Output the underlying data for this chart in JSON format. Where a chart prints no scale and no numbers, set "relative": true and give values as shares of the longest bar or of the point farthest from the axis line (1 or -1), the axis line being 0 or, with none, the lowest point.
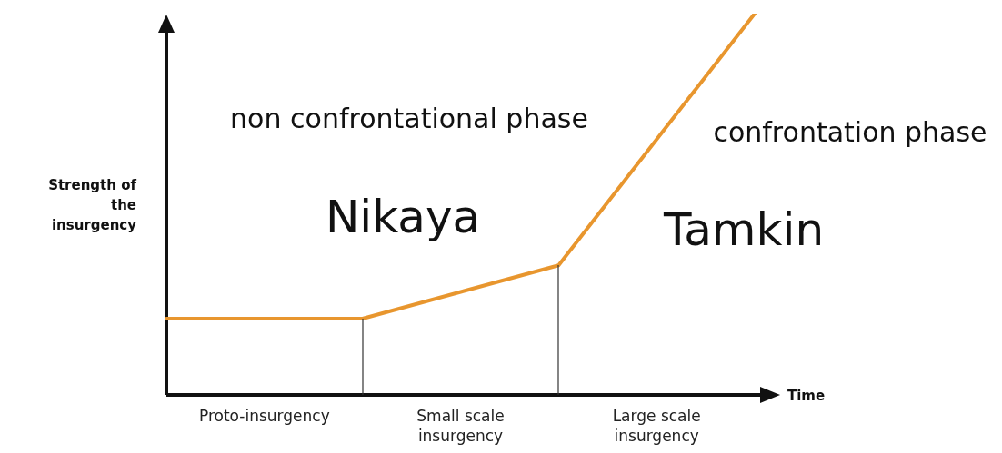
{
  "chart_data": {
    "type": "line",
    "relative": true,
    "xlabel": "Time",
    "ylabel": "Strength of the insurgency",
    "categories": [
      null,
      null,
      null,
      null
    ],
    "series": [
      {
        "color": "#e8962e",
        "values": [
          0.2,
          0.2,
          0.34,
          1
        ]
      }
    ],
    "annotations": [
      "non confrontational phase",
      "Nikaya",
      "Tamkin",
      "confrontation phase",
      "Proto-insurgency",
      "Small scale insurgency",
      "Large scale insurgency"
    ],
    "legend": false,
    "marker": "none",
    "line_style": "solid"
  }
}
